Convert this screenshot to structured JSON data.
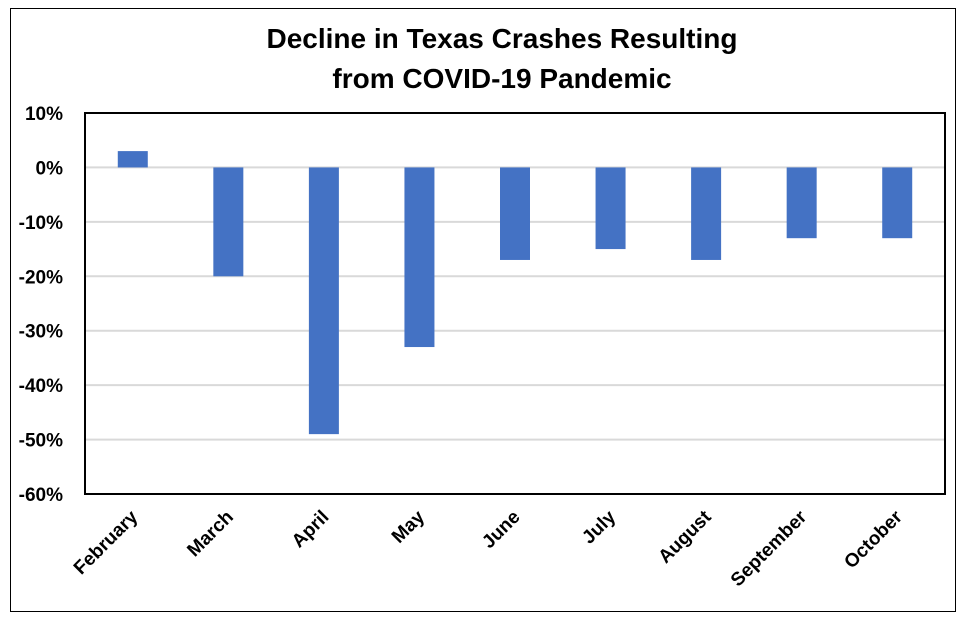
{
  "chart_data": {
    "type": "bar",
    "title": [
      "Decline in Texas Crashes Resulting",
      "from COVID-19 Pandemic"
    ],
    "xlabel": "",
    "ylabel": "",
    "categories": [
      "February",
      "March",
      "April",
      "May",
      "June",
      "July",
      "August",
      "September",
      "October"
    ],
    "values": [
      3,
      -20,
      -49,
      -33,
      -17,
      -15,
      -17,
      -13,
      -13
    ],
    "value_unit": "%",
    "ylim": [
      -60,
      10
    ],
    "yticks": [
      10,
      0,
      -10,
      -20,
      -30,
      -40,
      -50,
      -60
    ],
    "ytick_labels": [
      "10%",
      "0%",
      "-10%",
      "-20%",
      "-30%",
      "-40%",
      "-50%",
      "-60%"
    ],
    "grid": true,
    "legend": "none",
    "colors": {
      "bar": "#4472C4",
      "grid": "#D9D9D9",
      "axis": "#000000"
    }
  }
}
